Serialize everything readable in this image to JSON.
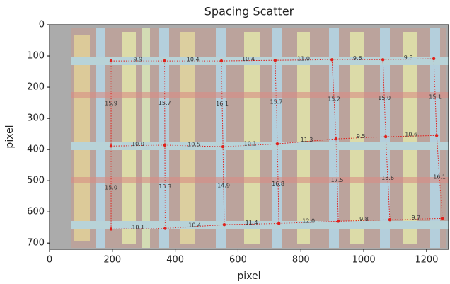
{
  "chart_data": {
    "type": "scatter",
    "title": "Spacing Scatter",
    "xlabel": "pixel",
    "ylabel": "pixel",
    "xlim": [
      0,
      1270
    ],
    "ylim": [
      720,
      0
    ],
    "xticks": [
      0,
      200,
      400,
      600,
      800,
      1000,
      1200
    ],
    "yticks": [
      0,
      100,
      200,
      300,
      400,
      500,
      600,
      700
    ],
    "color": "#e0201b",
    "rows": [
      {
        "x": [
          196,
          366,
          547,
          718,
          899,
          1061,
          1223
        ],
        "y": [
          116,
          116,
          116,
          114,
          112,
          112,
          109
        ]
      },
      {
        "x": [
          196,
          367,
          552,
          725,
          912,
          1070,
          1232
        ],
        "y": [
          389,
          386,
          391,
          382,
          366,
          359,
          355
        ]
      },
      {
        "x": [
          196,
          368,
          556,
          730,
          919,
          1083,
          1250
        ],
        "y": [
          655,
          653,
          641,
          637,
          630,
          625,
          621
        ]
      }
    ],
    "row_labels": [
      [
        "9.9",
        "10.4",
        "10.4",
        "11.0",
        "9.6",
        "9.8"
      ],
      [
        "10.0",
        "10.5",
        "10.1",
        "11.3",
        "9.5",
        "10.6"
      ],
      [
        "10.1",
        "10.4",
        "11.4",
        "12.0",
        "9.8",
        "9.7"
      ]
    ],
    "column_labels": [
      [
        "15.9",
        "15.7",
        "16.1",
        "15.7",
        "15.2",
        "15.0",
        "15.1"
      ],
      [
        "15.0",
        "15.3",
        "14.9",
        "16.8",
        "17.5",
        "16.6",
        "16.1"
      ]
    ]
  }
}
